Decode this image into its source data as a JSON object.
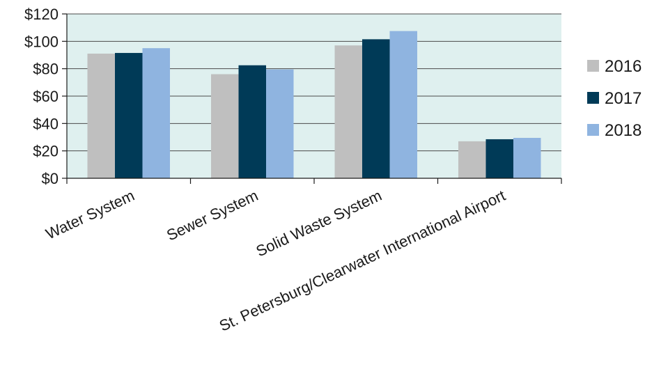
{
  "chart_data": {
    "type": "bar",
    "categories": [
      "Water System",
      "Sewer System",
      "Solid Waste System",
      "St. Petersburg/Clearwater International Airport"
    ],
    "series": [
      {
        "name": "2016",
        "values": [
          91,
          76,
          97,
          27
        ],
        "color": "#bfbfbf"
      },
      {
        "name": "2017",
        "values": [
          91.5,
          82.5,
          101.5,
          28.5
        ],
        "color": "#003a57"
      },
      {
        "name": "2018",
        "values": [
          95,
          79.5,
          107.5,
          29.5
        ],
        "color": "#8fb4e0"
      }
    ],
    "ylim": [
      0,
      120
    ],
    "yticks": [
      0,
      20,
      40,
      60,
      80,
      100,
      120
    ],
    "ytick_labels": [
      "$0",
      "$20",
      "$40",
      "$60",
      "$80",
      "$100",
      "$120"
    ],
    "grid": true,
    "plot_background": "#dff0ef",
    "legend_position": "right"
  }
}
